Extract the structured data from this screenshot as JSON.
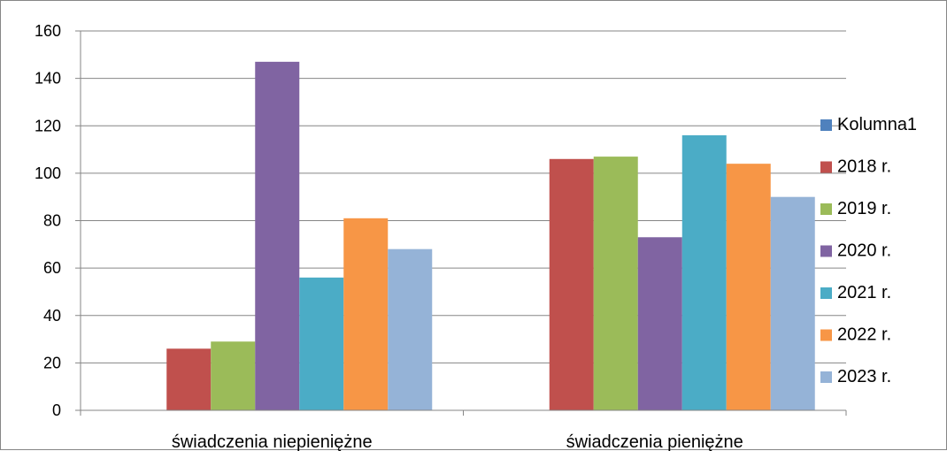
{
  "chart_data": {
    "type": "bar",
    "categories": [
      "świadczenia niepieniężne",
      "świadczenia pieniężne"
    ],
    "series": [
      {
        "name": "Kolumna1",
        "values": [
          null,
          null
        ],
        "color": "#4F81BD"
      },
      {
        "name": "2018 r.",
        "values": [
          26,
          106
        ],
        "color": "#C0504D"
      },
      {
        "name": "2019 r.",
        "values": [
          29,
          107
        ],
        "color": "#9BBB59"
      },
      {
        "name": "2020 r.",
        "values": [
          147,
          73
        ],
        "color": "#8064A2"
      },
      {
        "name": "2021 r.",
        "values": [
          56,
          116
        ],
        "color": "#4BACC6"
      },
      {
        "name": "2022 r.",
        "values": [
          81,
          104
        ],
        "color": "#F79646"
      },
      {
        "name": "2023 r.",
        "values": [
          68,
          90
        ],
        "color": "#95B3D7"
      }
    ],
    "yticks": [
      "0",
      "20",
      "40",
      "60",
      "80",
      "100",
      "120",
      "140",
      "160"
    ],
    "ylim": [
      0,
      160
    ],
    "grid": true,
    "legend_position": "right",
    "gridline_color": "#868686"
  }
}
